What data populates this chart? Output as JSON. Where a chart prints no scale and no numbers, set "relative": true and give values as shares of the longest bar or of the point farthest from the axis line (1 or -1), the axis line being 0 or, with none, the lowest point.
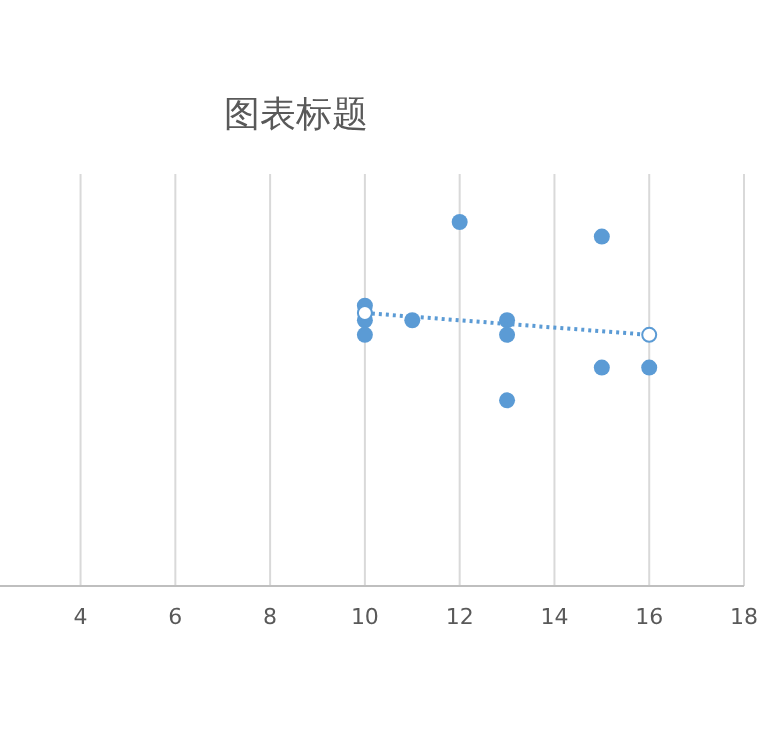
{
  "chart_data": {
    "type": "scatter",
    "title": "图表标题",
    "relative": true,
    "xlim": [
      2.3,
      18
    ],
    "xticks": [
      4,
      6,
      8,
      10,
      12,
      14,
      16,
      18
    ],
    "grid": "x",
    "marker": "circle",
    "tick_labels": "x",
    "series": [
      {
        "color": "#5b9bd5",
        "x": [
          10,
          10,
          10,
          11,
          12,
          13,
          13,
          13,
          15,
          15,
          16
        ],
        "values": [
          0.77,
          0.73,
          0.69,
          0.73,
          1,
          0.73,
          0.69,
          0.51,
          0.96,
          0.6,
          0.6
        ]
      },
      {
        "type": "line",
        "line_style": "dotted",
        "marker": "circle",
        "color": "#5b9bd5",
        "x": [
          10,
          16
        ],
        "values": [
          0.75,
          0.69
        ]
      }
    ]
  }
}
